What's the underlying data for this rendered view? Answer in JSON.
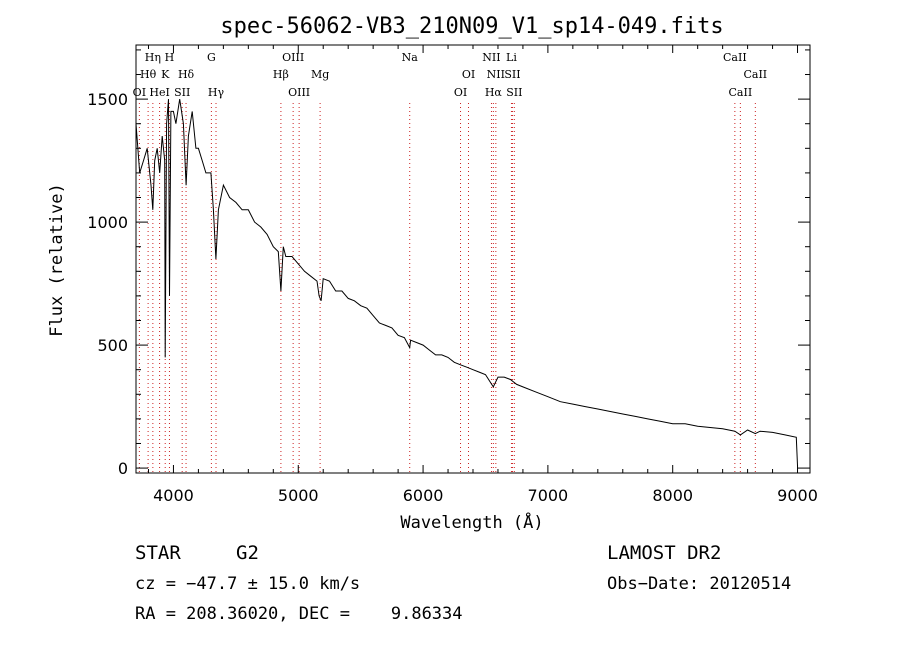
{
  "chart_data": {
    "type": "line",
    "title": "spec-56062-VB3_210N09_V1_sp14-049.fits",
    "xlabel": "Wavelength (Å)",
    "ylabel": "Flux (relative)",
    "xlim": [
      3700,
      9100
    ],
    "ylim": [
      -20,
      1720
    ],
    "xticks": [
      4000,
      5000,
      6000,
      7000,
      8000,
      9000
    ],
    "yticks": [
      0,
      500,
      1000,
      1500
    ],
    "grid": false,
    "series": [
      {
        "color": "#000000",
        "x": [
          3700,
          3730,
          3760,
          3790,
          3820,
          3835,
          3850,
          3870,
          3890,
          3910,
          3930,
          3934,
          3945,
          3960,
          3968,
          3980,
          4000,
          4020,
          4050,
          4080,
          4101,
          4120,
          4150,
          4180,
          4200,
          4230,
          4260,
          4300,
          4320,
          4340,
          4360,
          4400,
          4450,
          4500,
          4550,
          4600,
          4650,
          4700,
          4750,
          4800,
          4840,
          4861,
          4880,
          4900,
          4950,
          5000,
          5050,
          5100,
          5150,
          5167,
          5183,
          5200,
          5250,
          5300,
          5350,
          5400,
          5450,
          5500,
          5550,
          5600,
          5650,
          5700,
          5750,
          5800,
          5850,
          5893,
          5900,
          5950,
          6000,
          6050,
          6100,
          6150,
          6200,
          6250,
          6300,
          6350,
          6400,
          6450,
          6500,
          6563,
          6600,
          6650,
          6700,
          6750,
          6800,
          6900,
          7000,
          7100,
          7200,
          7300,
          7400,
          7500,
          7600,
          7700,
          7800,
          7900,
          8000,
          8100,
          8200,
          8300,
          8400,
          8498,
          8542,
          8600,
          8662,
          8700,
          8800,
          8900,
          8990,
          9000
        ],
        "y": [
          1400,
          1200,
          1250,
          1300,
          1150,
          1050,
          1250,
          1300,
          1200,
          1350,
          1250,
          450,
          1400,
          1500,
          700,
          1450,
          1450,
          1400,
          1500,
          1400,
          1150,
          1350,
          1450,
          1300,
          1300,
          1250,
          1200,
          1200,
          1050,
          850,
          1050,
          1150,
          1100,
          1080,
          1050,
          1050,
          1000,
          980,
          950,
          900,
          880,
          720,
          900,
          860,
          860,
          830,
          800,
          780,
          760,
          700,
          680,
          770,
          760,
          720,
          720,
          690,
          680,
          660,
          650,
          620,
          590,
          580,
          570,
          540,
          530,
          490,
          520,
          510,
          500,
          480,
          460,
          460,
          450,
          430,
          420,
          410,
          400,
          390,
          380,
          330,
          370,
          370,
          360,
          340,
          330,
          310,
          290,
          270,
          260,
          250,
          240,
          230,
          220,
          210,
          200,
          190,
          180,
          180,
          170,
          165,
          160,
          150,
          135,
          155,
          140,
          150,
          145,
          135,
          125,
          10
        ]
      }
    ],
    "line_markers": [
      {
        "label": "Hη",
        "x": 3835,
        "row": 1
      },
      {
        "label": "H",
        "x": 3968,
        "row": 1
      },
      {
        "label": "Hθ",
        "x": 3797,
        "row": 2
      },
      {
        "label": "K",
        "x": 3934,
        "row": 2
      },
      {
        "label": "Hδ",
        "x": 4101,
        "row": 2
      },
      {
        "label": "OI",
        "x": 3727,
        "row": 3
      },
      {
        "label": "HeI",
        "x": 3889,
        "row": 3
      },
      {
        "label": "SII",
        "x": 4070,
        "row": 3
      },
      {
        "label": "G",
        "x": 4304,
        "row": 1
      },
      {
        "label": "Hγ",
        "x": 4341,
        "row": 3
      },
      {
        "label": "OIII",
        "x": 4959,
        "row": 1
      },
      {
        "label": "Hβ",
        "x": 4861,
        "row": 2
      },
      {
        "label": "OIII",
        "x": 5007,
        "row": 3
      },
      {
        "label": "Mg",
        "x": 5175,
        "row": 2
      },
      {
        "label": "Na",
        "x": 5893,
        "row": 1
      },
      {
        "label": "NII",
        "x": 6548,
        "row": 1
      },
      {
        "label": "Li",
        "x": 6708,
        "row": 1
      },
      {
        "label": "OI",
        "x": 6364,
        "row": 2
      },
      {
        "label": "NII",
        "x": 6583,
        "row": 2
      },
      {
        "label": "SII",
        "x": 6716,
        "row": 2
      },
      {
        "label": "OI",
        "x": 6300,
        "row": 3
      },
      {
        "label": "Hα",
        "x": 6563,
        "row": 3
      },
      {
        "label": "SII",
        "x": 6731,
        "row": 3
      },
      {
        "label": "CaII",
        "x": 8498,
        "row": 1
      },
      {
        "label": "CaII",
        "x": 8662,
        "row": 2
      },
      {
        "label": "CaII",
        "x": 8542,
        "row": 3
      }
    ]
  },
  "info": {
    "class_label": "STAR",
    "subclass": "G2",
    "survey": "LAMOST DR2",
    "redshift": "cz = −47.7 ± 15.0 km/s",
    "obs_date": "Obs−Date: 20120514",
    "coords": "RA = 208.36020, DEC =    9.86334"
  }
}
